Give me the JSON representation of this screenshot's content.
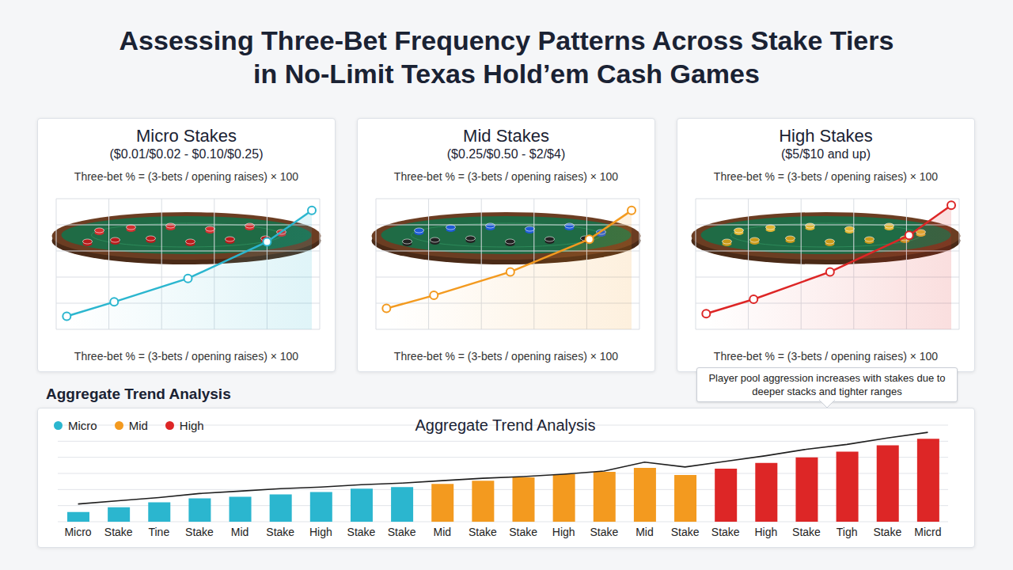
{
  "title": "Assessing Three-Bet Frequency Patterns Across Stake Tiers in No-Limit Texas Hold’em Cash Games",
  "chart_data": [
    {
      "type": "line",
      "title": "Micro Stakes",
      "subtitle": "($0.01/$0.02 - $0.10/$0.25)",
      "annotations": [
        "Three-bet % = (3-bets / opening raises) × 100",
        "Three-bet % = (3-bets / opening raises) × 100"
      ],
      "x": [
        4,
        22,
        50,
        80,
        97
      ],
      "values": [
        10,
        21,
        39,
        67,
        91
      ],
      "color": "#2bb6cf",
      "xlim": [
        0,
        100
      ],
      "ylim": [
        0,
        100
      ],
      "xticks": [
        0,
        20,
        40,
        60,
        80,
        100
      ],
      "yticks": [
        0,
        20,
        40,
        60,
        80,
        100
      ],
      "grid": true,
      "tick_labels": false,
      "marker": "circle"
    },
    {
      "type": "line",
      "title": "Mid Stakes",
      "subtitle": "($0.25/$0.50 - $2/$4)",
      "annotations": [
        "Three-bet % = (3-bets / opening raises) × 100",
        "Three-bet % = (3-bets / opening raises) × 100"
      ],
      "x": [
        4,
        22,
        51,
        81,
        97
      ],
      "values": [
        16,
        26,
        44,
        69,
        91
      ],
      "color": "#f39a1f",
      "xlim": [
        0,
        100
      ],
      "ylim": [
        0,
        100
      ],
      "xticks": [
        0,
        20,
        40,
        60,
        80,
        100
      ],
      "yticks": [
        0,
        20,
        40,
        60,
        80,
        100
      ],
      "grid": true,
      "tick_labels": false,
      "marker": "circle"
    },
    {
      "type": "line",
      "title": "High Stakes",
      "subtitle": "($5/$10 and up)",
      "annotations": [
        "Three-bet % = (3-bets / opening raises) × 100",
        "Three-bet % = (3-bets / opening raises) × 100"
      ],
      "x": [
        4,
        22,
        51,
        81,
        97
      ],
      "values": [
        12,
        23,
        44,
        72,
        95
      ],
      "color": "#dd2626",
      "xlim": [
        0,
        100
      ],
      "ylim": [
        0,
        100
      ],
      "xticks": [
        0,
        20,
        40,
        60,
        80,
        100
      ],
      "yticks": [
        0,
        20,
        40,
        60,
        80,
        100
      ],
      "grid": true,
      "tick_labels": false,
      "marker": "circle"
    },
    {
      "type": "bar",
      "section_title": "Aggregate Trend Analysis",
      "title": "Aggregate Trend Analysis",
      "annotations": [
        "Player pool aggression increases with stakes due to deeper stacks and tighter ranges"
      ],
      "categories": [
        "Micro",
        "Stake",
        "Tine",
        "Stake",
        "Mid",
        "Stake",
        "High",
        "Stake",
        "Stake",
        "Mid",
        "Stake",
        "Stake",
        "High",
        "Stake",
        "Mid",
        "Stake",
        "Stake",
        "High",
        "Stake",
        "Tigh",
        "Stake",
        "Micrd"
      ],
      "series": [
        {
          "name": "Micro",
          "color": "#2bb6cf",
          "values": [
            12,
            18,
            24,
            29,
            31,
            34,
            37,
            41,
            43,
            null,
            null,
            null,
            null,
            null,
            null,
            null,
            null,
            null,
            null,
            null,
            null,
            null
          ]
        },
        {
          "name": "Mid",
          "color": "#f39a1f",
          "values": [
            null,
            null,
            null,
            null,
            null,
            null,
            null,
            null,
            null,
            47,
            51,
            55,
            59,
            62,
            67,
            58,
            null,
            null,
            null,
            null,
            null,
            null
          ]
        },
        {
          "name": "High",
          "color": "#dd2626",
          "values": [
            null,
            null,
            null,
            null,
            null,
            null,
            null,
            null,
            null,
            null,
            null,
            null,
            null,
            null,
            null,
            null,
            66,
            73,
            80,
            87,
            95,
            103
          ]
        },
        {
          "type": "line",
          "color": "#1f1f1f",
          "values": [
            22,
            26,
            30,
            35,
            38,
            41,
            43,
            46,
            48,
            51,
            54,
            56,
            59,
            63,
            74,
            68,
            75,
            82,
            90,
            96,
            104,
            111
          ]
        }
      ],
      "ylim": [
        0,
        120
      ],
      "yticks": [
        0,
        20,
        40,
        60,
        80,
        100,
        120
      ],
      "grid": true,
      "legend": "upper left",
      "tick_labels": "x"
    }
  ]
}
